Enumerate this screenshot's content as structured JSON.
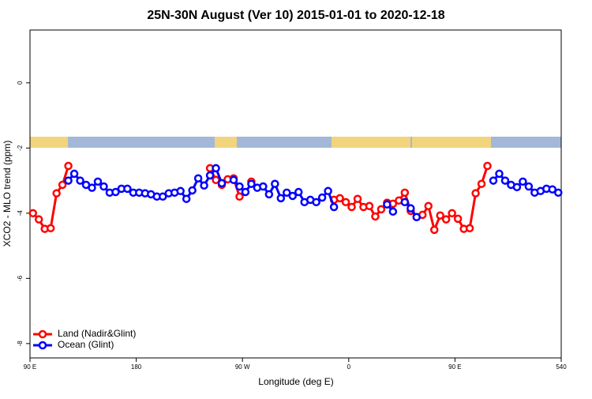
{
  "chart_data": {
    "type": "line",
    "title": "25N-30N August (Ver 10)   2015-01-01 to 2020-12-18",
    "x_label": "Longitude (deg E)",
    "y_label": "XCO2 - MLO trend (ppm)",
    "xlim": [
      90,
      540
    ],
    "ylim": [
      -8.44,
      1.62
    ],
    "xticks": [
      {
        "value": 90,
        "label": "90 E"
      },
      180,
      {
        "value": 270,
        "label": "90 W"
      },
      {
        "value": 360,
        "label": "0"
      },
      {
        "value": 450,
        "label": "90 E"
      },
      540
    ],
    "yticks": [
      0,
      -2,
      -4,
      -6,
      -8
    ],
    "legend": "bottom-left",
    "x": [
      92.5,
      97.5,
      102.5,
      107.5,
      112.5,
      117.5,
      122.5,
      127.5,
      132.5,
      137.5,
      142.5,
      147.5,
      152.5,
      157.5,
      162.5,
      167.5,
      172.5,
      177.5,
      182.5,
      187.5,
      192.5,
      197.5,
      202.5,
      207.5,
      212.5,
      217.5,
      222.5,
      227.5,
      232.5,
      237.5,
      242.5,
      247.5,
      252.5,
      257.5,
      262.5,
      267.5,
      272.5,
      277.5,
      282.5,
      287.5,
      292.5,
      297.5,
      302.5,
      307.5,
      312.5,
      317.5,
      322.5,
      327.5,
      332.5,
      337.5,
      342.5,
      347.5,
      352.5,
      357.5,
      362.5,
      367.5,
      372.5,
      377.5,
      382.5,
      387.5,
      392.5,
      397.5,
      402.5,
      407.5,
      412.5,
      417.5,
      422.5,
      427.5,
      432.5,
      437.5,
      442.5,
      447.5,
      452.5,
      457.5,
      462.5,
      467.5,
      472.5,
      477.5,
      482.5,
      487.5,
      492.5,
      497.5,
      502.5,
      507.5,
      512.5,
      517.5,
      522.5,
      527.5,
      532.5,
      537.5
    ],
    "series": [
      {
        "name": "Land (Nadir&Glint)",
        "color": "#ff0000",
        "values": [
          -4.0,
          -4.19,
          -4.48,
          -4.46,
          -3.39,
          -3.13,
          -2.55,
          null,
          null,
          null,
          null,
          null,
          null,
          null,
          null,
          null,
          null,
          null,
          null,
          null,
          null,
          null,
          null,
          null,
          null,
          null,
          null,
          null,
          null,
          null,
          -2.62,
          -2.98,
          -3.13,
          -2.96,
          -2.93,
          -3.49,
          null,
          -3.03,
          null,
          null,
          null,
          null,
          null,
          null,
          null,
          null,
          null,
          null,
          null,
          null,
          null,
          -3.59,
          -3.54,
          -3.66,
          -3.81,
          -3.56,
          -3.81,
          -3.78,
          -4.1,
          -3.88,
          -3.68,
          -3.71,
          -3.61,
          -3.37,
          -3.93,
          -4.12,
          -4.05,
          -3.78,
          -4.51,
          -4.07,
          -4.19,
          -4.0,
          -4.17,
          -4.48,
          -4.46,
          -3.39,
          -3.1,
          -2.55,
          null,
          null,
          null,
          null,
          null,
          null,
          null,
          null,
          null,
          null,
          null,
          null
        ]
      },
      {
        "name": "Ocean (Glint)",
        "color": "#0000ff",
        "values": [
          null,
          null,
          null,
          null,
          null,
          null,
          -3.0,
          -2.79,
          -3.0,
          -3.13,
          -3.22,
          -3.03,
          -3.18,
          -3.37,
          -3.35,
          -3.25,
          -3.25,
          -3.37,
          -3.37,
          -3.39,
          -3.42,
          -3.49,
          -3.49,
          -3.39,
          -3.37,
          -3.32,
          -3.56,
          -3.3,
          -2.93,
          -3.15,
          -2.84,
          -2.62,
          -3.08,
          null,
          -2.98,
          -3.18,
          -3.35,
          -3.1,
          -3.22,
          -3.18,
          -3.42,
          -3.1,
          -3.54,
          -3.37,
          -3.47,
          -3.35,
          -3.66,
          -3.59,
          -3.66,
          -3.52,
          -3.32,
          -3.81,
          null,
          null,
          null,
          null,
          null,
          null,
          null,
          null,
          -3.73,
          -3.95,
          null,
          -3.66,
          -3.85,
          -4.12,
          null,
          null,
          null,
          null,
          null,
          null,
          null,
          null,
          null,
          null,
          null,
          null,
          -3.0,
          -2.79,
          -3.0,
          -3.13,
          -3.2,
          -3.03,
          -3.18,
          -3.37,
          -3.32,
          -3.25,
          -3.27,
          -3.37
        ]
      }
    ]
  }
}
